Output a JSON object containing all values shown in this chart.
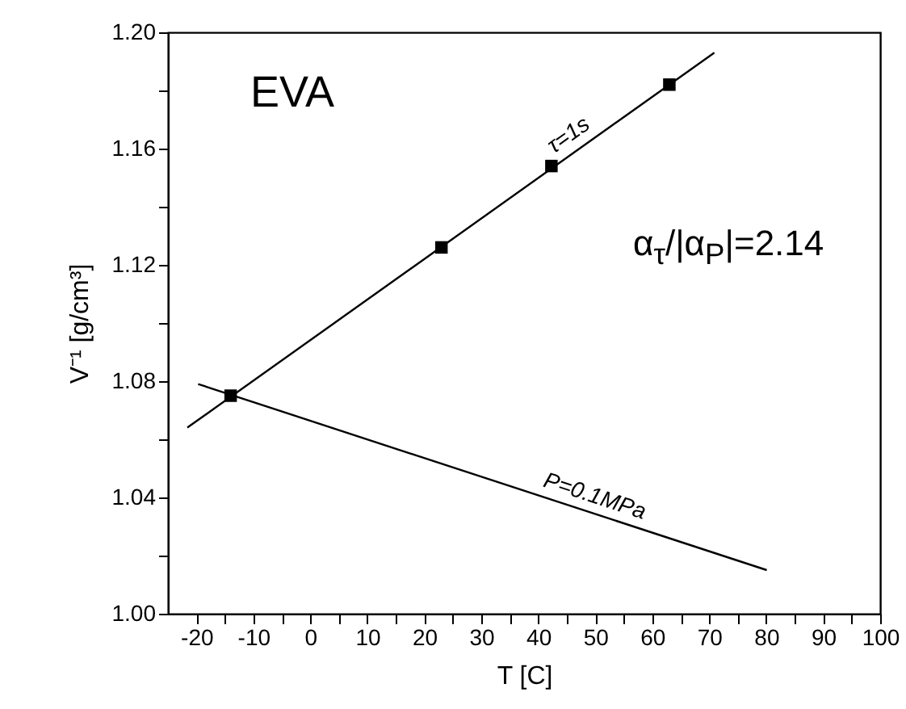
{
  "chart_data": {
    "type": "line",
    "xlabel": "T [C]",
    "ylabel": "V⁻¹ [g/cm³]",
    "xlim": [
      -25,
      100
    ],
    "ylim": [
      1.0,
      1.2
    ],
    "xticks": [
      -20,
      {
        "value": -15,
        "label": null
      },
      -10,
      {
        "value": -5,
        "label": null
      },
      0,
      {
        "value": 5,
        "label": null
      },
      10,
      {
        "value": 15,
        "label": null
      },
      20,
      {
        "value": 25,
        "label": null
      },
      30,
      {
        "value": 35,
        "label": null
      },
      40,
      {
        "value": 45,
        "label": null
      },
      50,
      {
        "value": 55,
        "label": null
      },
      60,
      {
        "value": 65,
        "label": null
      },
      70,
      {
        "value": 75,
        "label": null
      },
      80,
      {
        "value": 85,
        "label": null
      },
      90,
      {
        "value": 95,
        "label": null
      },
      100
    ],
    "yticks": [
      {
        "value": 1.0,
        "label": "1.00"
      },
      {
        "value": 1.02,
        "label": null
      },
      1.04,
      {
        "value": 1.06,
        "label": null
      },
      1.08,
      {
        "value": 1.1,
        "label": null
      },
      1.12,
      {
        "value": 1.14,
        "label": null
      },
      1.16,
      {
        "value": 1.18,
        "label": null
      },
      {
        "value": 1.2,
        "label": "1.20"
      }
    ],
    "grid": false,
    "series": [
      {
        "color": "#000000",
        "x": [
          -21.6,
          70.9
        ],
        "values": [
          1.064,
          1.193
        ]
      },
      {
        "type": "scatter",
        "marker": "square",
        "color": "#000000",
        "x": [
          -14,
          23,
          42.3,
          63
        ],
        "values": [
          1.075,
          1.126,
          1.154,
          1.182
        ]
      },
      {
        "color": "#000000",
        "x": [
          -19.7,
          80.1
        ],
        "values": [
          1.079,
          1.015
        ]
      }
    ],
    "annotations": [
      "EVA",
      {
        "text": "τ=1s",
        "x": 47,
        "y": 1.16
      },
      {
        "text": "P=0.1MPa",
        "x": 49,
        "y": 1.035
      },
      "α$_{τ}$/|α$_{P}$|=2.14"
    ]
  }
}
